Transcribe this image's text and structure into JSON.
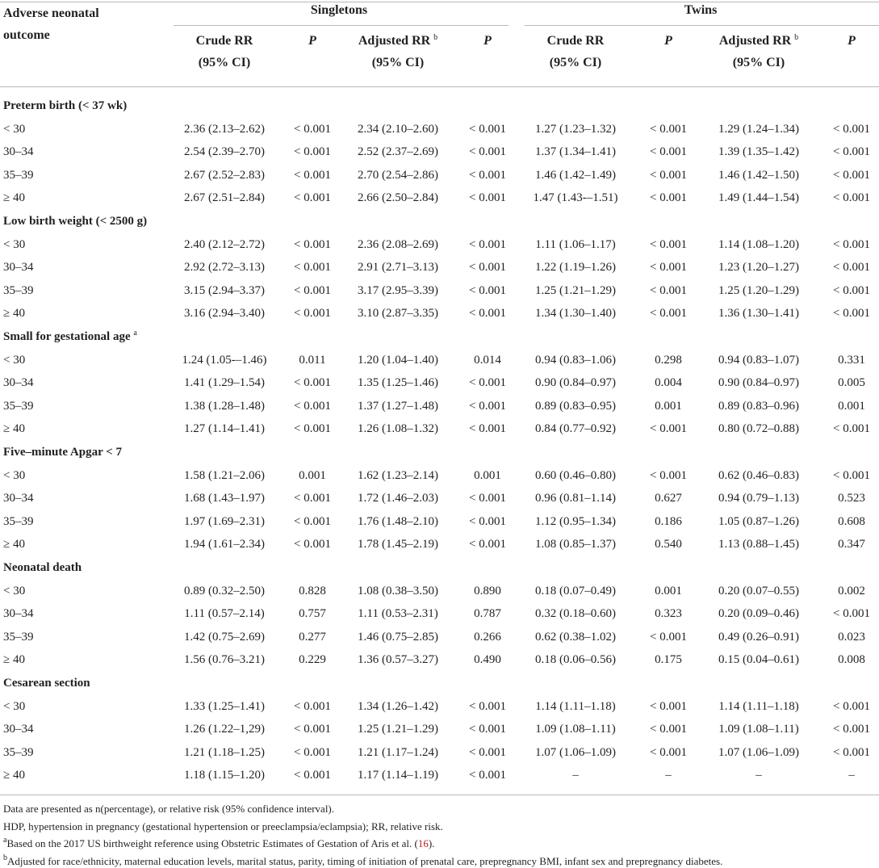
{
  "header": {
    "outcome": "Adverse neonatal outcome",
    "groups": [
      "Singletons",
      "Twins"
    ],
    "columns": [
      {
        "label": "Crude RR",
        "sub": "(95% CI)"
      },
      {
        "label": "P"
      },
      {
        "label": "Adjusted RR",
        "note": "b",
        "sub": "(95% CI)"
      },
      {
        "label": "P"
      },
      {
        "label": "Crude RR",
        "sub": "(95% CI)"
      },
      {
        "label": "P"
      },
      {
        "label": "Adjusted RR",
        "note": "b",
        "sub": "(95% CI)"
      },
      {
        "label": "P"
      }
    ]
  },
  "sections": [
    {
      "title": "Preterm birth (< 37 wk)",
      "rows": [
        [
          "< 30",
          "2.36 (2.13–2.62)",
          "< 0.001",
          "2.34 (2.10–2.60)",
          "< 0.001",
          "1.27 (1.23–1.32)",
          "< 0.001",
          "1.29 (1.24–1.34)",
          "< 0.001"
        ],
        [
          "30–34",
          "2.54 (2.39–2.70)",
          "< 0.001",
          "2.52 (2.37–2.69)",
          "< 0.001",
          "1.37 (1.34–1.41)",
          "< 0.001",
          "1.39 (1.35–1.42)",
          "< 0.001"
        ],
        [
          "35–39",
          "2.67 (2.52–2.83)",
          "< 0.001",
          "2.70 (2.54–2.86)",
          "< 0.001",
          "1.46 (1.42–1.49)",
          "< 0.001",
          "1.46 (1.42–1.50)",
          "< 0.001"
        ],
        [
          "≥ 40",
          "2.67 (2.51–2.84)",
          "< 0.001",
          "2.66 (2.50–2.84)",
          "< 0.001",
          "1.47 (1.43-–1.51)",
          "< 0.001",
          "1.49 (1.44–1.54)",
          "< 0.001"
        ]
      ]
    },
    {
      "title": "Low birth weight (< 2500 g)",
      "rows": [
        [
          "< 30",
          "2.40 (2.12–2.72)",
          "< 0.001",
          "2.36 (2.08–2.69)",
          "< 0.001",
          "1.11 (1.06–1.17)",
          "< 0.001",
          "1.14 (1.08–1.20)",
          "< 0.001"
        ],
        [
          "30–34",
          "2.92 (2.72–3.13)",
          "< 0.001",
          "2.91 (2.71–3.13)",
          "< 0.001",
          "1.22 (1.19–1.26)",
          "< 0.001",
          "1.23 (1.20–1.27)",
          "< 0.001"
        ],
        [
          "35–39",
          "3.15 (2.94–3.37)",
          "< 0.001",
          "3.17 (2.95–3.39)",
          "< 0.001",
          "1.25 (1.21–1.29)",
          "< 0.001",
          "1.25 (1.20–1.29)",
          "< 0.001"
        ],
        [
          "≥ 40",
          "3.16 (2.94–3.40)",
          "< 0.001",
          "3.10 (2.87–3.35)",
          "< 0.001",
          "1.34 (1.30–1.40)",
          "< 0.001",
          "1.36 (1.30–1.41)",
          "< 0.001"
        ]
      ]
    },
    {
      "title": "Small for gestational age",
      "note": "a",
      "rows": [
        [
          "< 30",
          "1.24 (1.05-–1.46)",
          "0.011",
          "1.20 (1.04–1.40)",
          "0.014",
          "0.94 (0.83–1.06)",
          "0.298",
          "0.94 (0.83–1.07)",
          "0.331"
        ],
        [
          "30–34",
          "1.41 (1.29–1.54)",
          "< 0.001",
          "1.35 (1.25–1.46)",
          "< 0.001",
          "0.90 (0.84–0.97)",
          "0.004",
          "0.90 (0.84–0.97)",
          "0.005"
        ],
        [
          "35–39",
          "1.38 (1.28–1.48)",
          "< 0.001",
          "1.37 (1.27–1.48)",
          "< 0.001",
          "0.89 (0.83–0.95)",
          "0.001",
          "0.89 (0.83–0.96)",
          "0.001"
        ],
        [
          "≥ 40",
          "1.27 (1.14–1.41)",
          "< 0.001",
          "1.26 (1.08–1.32)",
          "< 0.001",
          "0.84 (0.77–0.92)",
          "< 0.001",
          "0.80 (0.72–0.88)",
          "< 0.001"
        ]
      ]
    },
    {
      "title": "Five–minute Apgar < 7",
      "rows": [
        [
          "< 30",
          "1.58 (1.21–2.06)",
          "0.001",
          "1.62 (1.23–2.14)",
          "0.001",
          "0.60 (0.46–0.80)",
          "< 0.001",
          "0.62 (0.46–0.83)",
          "< 0.001"
        ],
        [
          "30–34",
          "1.68 (1.43–1.97)",
          "< 0.001",
          "1.72 (1.46–2.03)",
          "< 0.001",
          "0.96 (0.81–1.14)",
          "0.627",
          "0.94 (0.79–1.13)",
          "0.523"
        ],
        [
          "35–39",
          "1.97 (1.69–2.31)",
          "< 0.001",
          "1.76 (1.48–2.10)",
          "< 0.001",
          "1.12 (0.95–1.34)",
          "0.186",
          "1.05 (0.87–1.26)",
          "0.608"
        ],
        [
          "≥ 40",
          "1.94 (1.61–2.34)",
          "< 0.001",
          "1.78 (1.45–2.19)",
          "< 0.001",
          "1.08 (0.85–1.37)",
          "0.540",
          "1.13 (0.88–1.45)",
          "0.347"
        ]
      ]
    },
    {
      "title": "Neonatal death",
      "rows": [
        [
          "< 30",
          "0.89 (0.32–2.50)",
          "0.828",
          "1.08 (0.38–3.50)",
          "0.890",
          "0.18 (0.07–0.49)",
          "0.001",
          "0.20 (0.07–0.55)",
          "0.002"
        ],
        [
          "30–34",
          "1.11 (0.57–2.14)",
          "0.757",
          "1.11 (0.53–2.31)",
          "0.787",
          "0.32 (0.18–0.60)",
          "0.323",
          "0.20 (0.09–0.46)",
          "< 0.001"
        ],
        [
          "35–39",
          "1.42 (0.75–2.69)",
          "0.277",
          "1.46 (0.75–2.85)",
          "0.266",
          "0.62 (0.38–1.02)",
          "< 0.001",
          "0.49 (0.26–0.91)",
          "0.023"
        ],
        [
          "≥ 40",
          "1.56 (0.76–3.21)",
          "0.229",
          "1.36 (0.57–3.27)",
          "0.490",
          "0.18 (0.06–0.56)",
          "0.175",
          "0.15 (0.04–0.61)",
          "0.008"
        ]
      ]
    },
    {
      "title": "Cesarean section",
      "rows": [
        [
          "< 30",
          "1.33 (1.25–1.41)",
          "< 0.001",
          "1.34 (1.26–1.42)",
          "< 0.001",
          "1.14 (1.11–1.18)",
          "< 0.001",
          "1.14 (1.11–1.18)",
          "< 0.001"
        ],
        [
          "30–34",
          "1.26 (1.22–1,29)",
          "< 0.001",
          "1.25 (1.21–1.29)",
          "< 0.001",
          "1.09 (1.08–1.11)",
          "< 0.001",
          "1.09 (1.08–1.11)",
          "< 0.001"
        ],
        [
          "35–39",
          "1.21 (1.18–1.25)",
          "< 0.001",
          "1.21 (1.17–1.24)",
          "< 0.001",
          "1.07 (1.06–1.09)",
          "< 0.001",
          "1.07 (1.06–1.09)",
          "< 0.001"
        ],
        [
          "≥ 40",
          "1.18 (1.15–1.20)",
          "< 0.001",
          "1.17 (1.14–1.19)",
          "< 0.001",
          "–",
          "–",
          "–",
          "–"
        ]
      ]
    }
  ],
  "footnotes": [
    {
      "text": "Data are presented as n(percentage), or relative risk (95% confidence interval)."
    },
    {
      "text": "HDP, hypertension in pregnancy (gestational hypertension or preeclampsia/eclampsia); RR, relative risk."
    },
    {
      "mark": "a",
      "text": "Based on the 2017 US birthweight reference using Obstetric Estimates of Gestation of Aris et al. (",
      "ref": "16",
      "after": ")."
    },
    {
      "mark": "b",
      "text": "Adjusted for race/ethnicity, maternal education levels, marital status, parity, timing of initiation of prenatal care, prepregnancy BMI, infant sex and prepregnancy diabetes."
    }
  ]
}
